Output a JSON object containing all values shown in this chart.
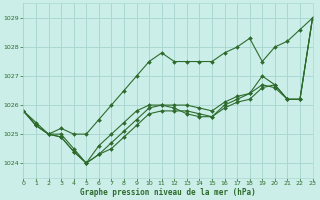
{
  "title": "Graphe pression niveau de la mer (hPa)",
  "background_color": "#cceee8",
  "grid_color": "#aad8d2",
  "line_color": "#2d6b2d",
  "xlim": [
    0,
    23
  ],
  "ylim": [
    1023.5,
    1029.5
  ],
  "yticks": [
    1024,
    1025,
    1026,
    1027,
    1028,
    1029
  ],
  "xticks": [
    0,
    1,
    2,
    3,
    4,
    5,
    6,
    7,
    8,
    9,
    10,
    11,
    12,
    13,
    14,
    15,
    16,
    17,
    18,
    19,
    20,
    21,
    22,
    23
  ],
  "series": [
    {
      "x": [
        0,
        1,
        2,
        3,
        4,
        5,
        6,
        7,
        8,
        9,
        10,
        11,
        12,
        13,
        14,
        15,
        16,
        17,
        18,
        19,
        20,
        21,
        22,
        23
      ],
      "y": [
        1025.8,
        1025.4,
        1025.0,
        1025.2,
        1025.0,
        1025.0,
        1025.5,
        1026.0,
        1026.5,
        1027.0,
        1027.5,
        1027.8,
        1027.5,
        1027.5,
        1027.5,
        1027.5,
        1027.8,
        1028.0,
        1028.3,
        1027.5,
        1028.0,
        1028.2,
        1028.6,
        1029.0
      ]
    },
    {
      "x": [
        0,
        1,
        2,
        3,
        4,
        5,
        6,
        7,
        8,
        9,
        10,
        11,
        12,
        13,
        14,
        15,
        16,
        17,
        18,
        19,
        20,
        21,
        22,
        23
      ],
      "y": [
        1025.8,
        1025.3,
        1025.0,
        1025.0,
        1024.5,
        1024.0,
        1024.6,
        1025.0,
        1025.4,
        1025.8,
        1026.0,
        1026.0,
        1025.9,
        1025.7,
        1025.6,
        1025.6,
        1026.0,
        1026.2,
        1026.4,
        1026.7,
        1026.6,
        1026.2,
        1026.2,
        1029.0
      ]
    },
    {
      "x": [
        0,
        1,
        2,
        3,
        4,
        5,
        6,
        7,
        8,
        9,
        10,
        11,
        12,
        13,
        14,
        15,
        16,
        17,
        18,
        19,
        20,
        21,
        22,
        23
      ],
      "y": [
        1025.8,
        1025.3,
        1025.0,
        1024.9,
        1024.4,
        1024.0,
        1024.3,
        1024.5,
        1024.9,
        1025.3,
        1025.7,
        1025.8,
        1025.8,
        1025.8,
        1025.7,
        1025.6,
        1025.9,
        1026.1,
        1026.2,
        1026.6,
        1026.7,
        1026.2,
        1026.2,
        1029.0
      ]
    },
    {
      "x": [
        0,
        1,
        2,
        3,
        4,
        5,
        6,
        7,
        8,
        9,
        10,
        11,
        12,
        13,
        14,
        15,
        16,
        17,
        18,
        19,
        20,
        21,
        22,
        23
      ],
      "y": [
        1025.8,
        1025.3,
        1025.0,
        1024.9,
        1024.4,
        1024.0,
        1024.3,
        1024.7,
        1025.1,
        1025.5,
        1025.9,
        1026.0,
        1026.0,
        1026.0,
        1025.9,
        1025.8,
        1026.1,
        1026.3,
        1026.4,
        1027.0,
        1026.7,
        1026.2,
        1026.2,
        1029.0
      ]
    }
  ]
}
